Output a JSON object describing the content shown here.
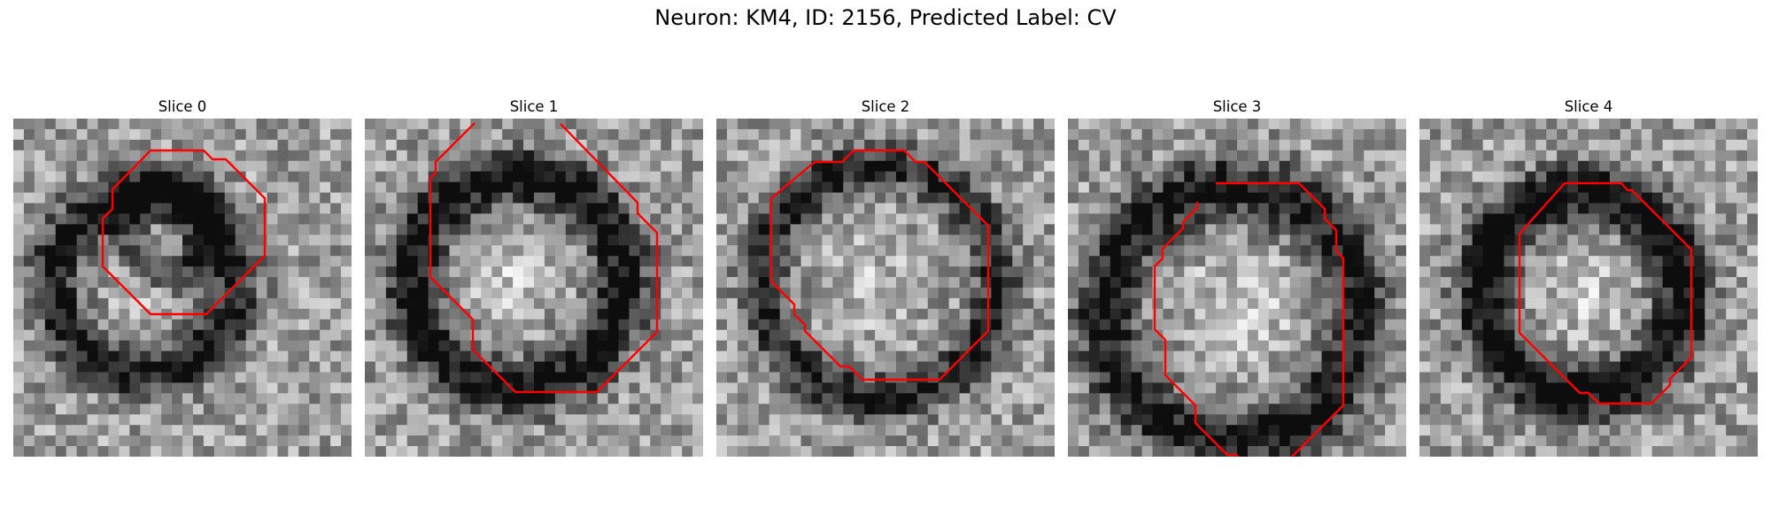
{
  "figure": {
    "suptitle": "Neuron: KM4, ID: 2156, Predicted Label: CV"
  },
  "panels": [
    {
      "title": "Slice 0"
    },
    {
      "title": "Slice 1"
    },
    {
      "title": "Slice 2"
    },
    {
      "title": "Slice 3"
    },
    {
      "title": "Slice 4"
    }
  ],
  "colors": {
    "contour": "#ff0000",
    "background": "#ffffff"
  }
}
